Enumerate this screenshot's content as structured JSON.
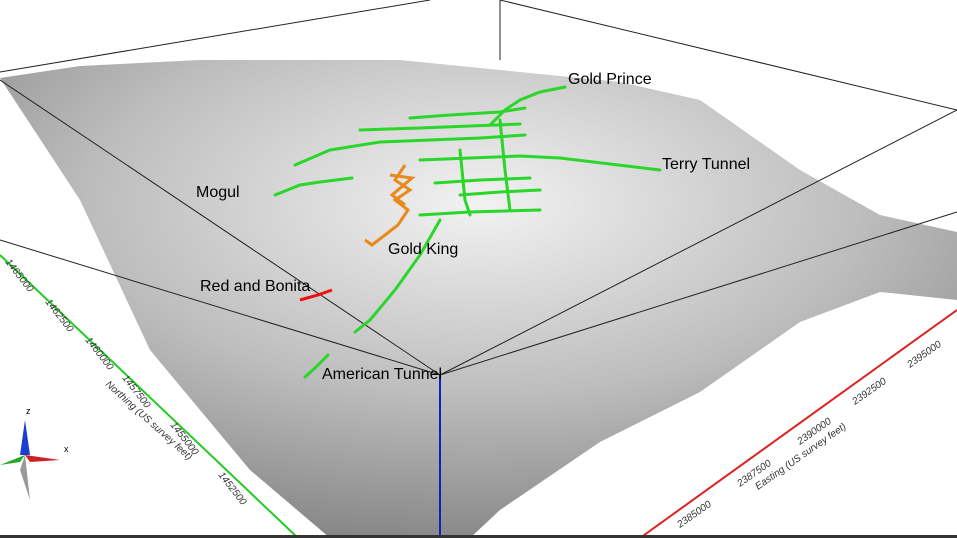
{
  "workings": [
    "Gold Prince",
    "Terry Tunnel",
    "Mogul",
    "Gold King",
    "Red and Bonita",
    "American Tunnel"
  ],
  "northing_axis": {
    "title": "Northing (US survey feet)",
    "ticks": [
      1465000,
      1462500,
      1460000,
      1457500,
      1455000,
      1452500
    ]
  },
  "easting_axis": {
    "title": "Easting (US survey feet)",
    "ticks": [
      2385000,
      2387500,
      2390000,
      2392500,
      2395000
    ]
  },
  "orientation": {
    "z": "z",
    "x": "x"
  }
}
